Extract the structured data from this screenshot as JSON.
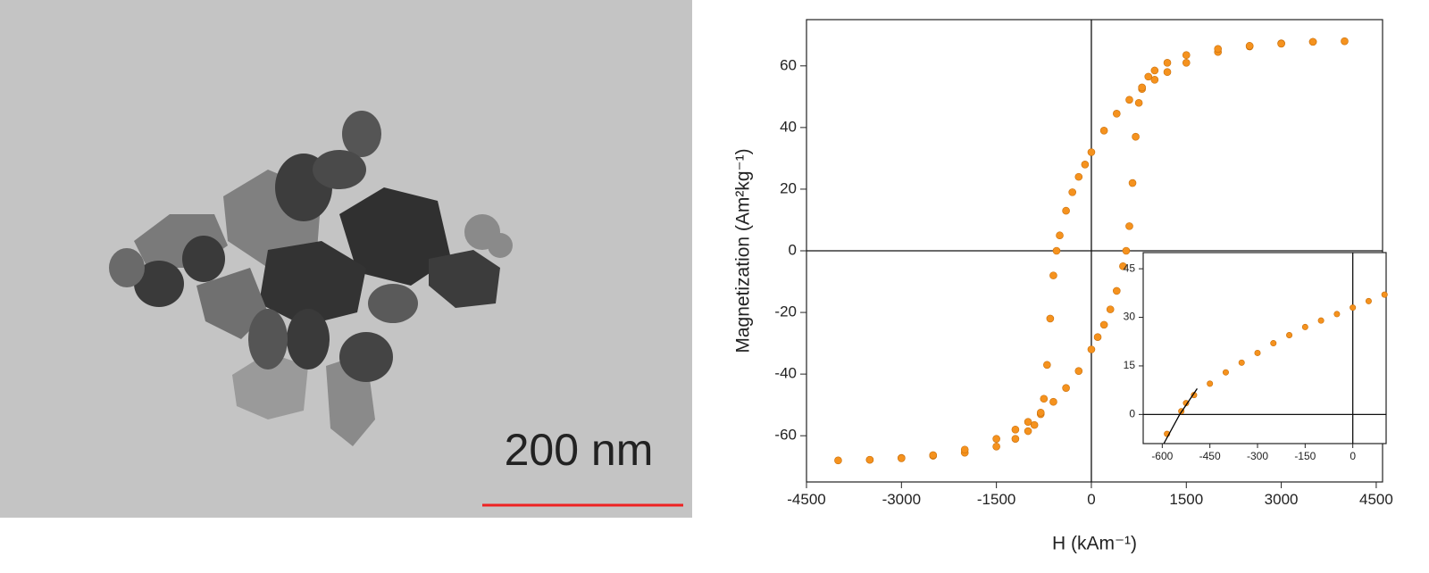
{
  "micrograph": {
    "scale_bar_label": "200 nm"
  },
  "chart_data": [
    {
      "type": "scatter",
      "xlabel": "H (kAm⁻¹)",
      "ylabel": "Magnetization (Am²kg⁻¹)",
      "xlim": [
        -4500,
        4600
      ],
      "ylim": [
        -75,
        75
      ],
      "xticks": [
        -4500,
        -3000,
        -1500,
        0,
        1500,
        3000,
        4500
      ],
      "yticks": [
        -60,
        -40,
        -20,
        0,
        20,
        40,
        60
      ],
      "series": [
        {
          "color": "#f5921e",
          "x": [
            4000,
            3500,
            3000,
            2500,
            2000,
            1500,
            1200,
            1000,
            800,
            600,
            400,
            200,
            0,
            -100,
            -200,
            -300,
            -400,
            -500,
            -550,
            -600,
            -650,
            -700,
            -750,
            -800,
            -900,
            -1000,
            -1200,
            -1500,
            -2000,
            -2500,
            -3000,
            -3500,
            -4000,
            -3500,
            -3000,
            -2500,
            -2000,
            -1500,
            -1200,
            -1000,
            -800,
            -600,
            -400,
            -200,
            0,
            100,
            200,
            300,
            400,
            500,
            550,
            600,
            650,
            700,
            750,
            800,
            900,
            1000,
            1200,
            1500,
            2000,
            2500,
            3000,
            3500
          ],
          "values": [
            68,
            67.8,
            67.3,
            66.3,
            64.5,
            61,
            58,
            55.5,
            52.5,
            49,
            44.5,
            39,
            32,
            28,
            24,
            19,
            13,
            5,
            0,
            -8,
            -22,
            -37,
            -48,
            -53,
            -56.5,
            -58.5,
            -61,
            -63.5,
            -65.5,
            -66.5,
            -67.2,
            -67.8,
            -68,
            -67.8,
            -67.3,
            -66.3,
            -64.5,
            -61,
            -58,
            -55.5,
            -52.5,
            -49,
            -44.5,
            -39,
            -32,
            -28,
            -24,
            -19,
            -13,
            -5,
            0,
            8,
            22,
            37,
            48,
            53,
            56.5,
            58.5,
            61,
            63.5,
            65.5,
            66.5,
            67.2,
            67.8
          ]
        }
      ]
    },
    {
      "type": "scatter",
      "xlim": [
        -660,
        105
      ],
      "ylim": [
        -9,
        50
      ],
      "xticks": [
        -600,
        -450,
        -300,
        -150,
        0
      ],
      "yticks": [
        0,
        15,
        30,
        45
      ],
      "series": [
        {
          "color": "#f5921e",
          "x": [
            -585,
            -540,
            -525,
            -500,
            -450,
            -400,
            -350,
            -300,
            -250,
            -200,
            -150,
            -100,
            -50,
            0,
            50,
            100
          ],
          "values": [
            -6,
            1,
            3.5,
            6,
            9.5,
            13,
            16,
            19,
            22,
            24.5,
            27,
            29,
            31,
            33,
            35,
            37
          ]
        },
        {
          "color": "#000000",
          "style": "line",
          "x": [
            -595,
            -545,
            -490
          ],
          "values": [
            -9,
            0,
            8
          ]
        }
      ]
    }
  ]
}
